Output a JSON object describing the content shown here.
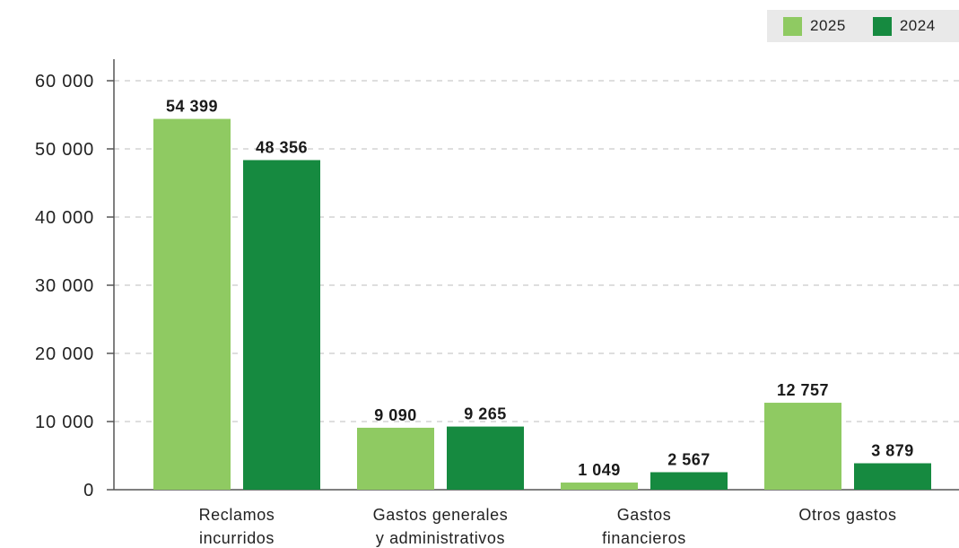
{
  "colors": {
    "series_2025": "#8fca62",
    "series_2024": "#168a40",
    "grid": "#bdbdbd",
    "axis": "#555555"
  },
  "chart_data": {
    "type": "bar",
    "categories": [
      [
        "Reclamos",
        "incurridos"
      ],
      [
        "Gastos generales",
        "y administrativos"
      ],
      [
        "Gastos",
        "financieros"
      ],
      [
        "Otros gastos"
      ]
    ],
    "series": [
      {
        "name": "2025",
        "values": [
          54399,
          9090,
          1049,
          12757
        ],
        "labels": [
          "54 399",
          "9 090",
          "1 049",
          "12 757"
        ],
        "color": "#8fca62"
      },
      {
        "name": "2024",
        "values": [
          48356,
          9265,
          2567,
          3879
        ],
        "labels": [
          "48 356",
          "9 265",
          "2 567",
          "3 879"
        ],
        "color": "#168a40"
      }
    ],
    "ylim": [
      0,
      60000
    ],
    "yticks": [
      0,
      10000,
      20000,
      30000,
      40000,
      50000,
      60000
    ],
    "ytick_labels": [
      "0",
      "10 000",
      "20 000",
      "30 000",
      "40 000",
      "50 000",
      "60 000"
    ],
    "grid": true,
    "legend_position": "top-right"
  }
}
